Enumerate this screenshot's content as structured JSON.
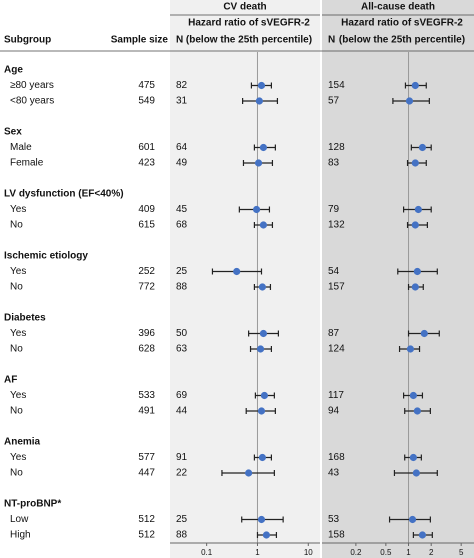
{
  "chart_data": {
    "type": "forest",
    "columns": {
      "subgroup": "Subgroup",
      "sample_size": "Sample size"
    },
    "point_color": "#4472c4",
    "panels": [
      {
        "title": "CV death",
        "label_line1": "Hazard ratio of  sVEGFR-2",
        "label_line2": "(below the 25th percentile)",
        "n_label": "N",
        "xlim": [
          0.019,
          17
        ],
        "xticks": [
          0.1,
          1,
          10
        ],
        "log": true,
        "reference": 1,
        "background": "#f0f0f0"
      },
      {
        "title": "All-cause death",
        "label_line1": "Hazard ratio of  sVEGFR-2",
        "label_line2": "(below the 25th percentile)",
        "n_label": "N",
        "xlim": [
          0.071,
          7.4
        ],
        "xticks": [
          0.2,
          0.5,
          1,
          2,
          5
        ],
        "log": true,
        "reference": 1,
        "background": "#d9d9d9"
      }
    ],
    "groups": [
      {
        "title": "Age",
        "rows": [
          {
            "label": "≥80 years",
            "sample_size": 475,
            "panels": [
              {
                "n": 82,
                "hr": 1.2,
                "lo": 0.76,
                "hi": 1.88
              },
              {
                "n": 154,
                "hr": 1.23,
                "lo": 0.91,
                "hi": 1.72
              }
            ]
          },
          {
            "label": "<80 years",
            "sample_size": 549,
            "panels": [
              {
                "n": 31,
                "hr": 1.09,
                "lo": 0.51,
                "hi": 2.47
              },
              {
                "n": 57,
                "hr": 1.03,
                "lo": 0.62,
                "hi": 1.89
              }
            ]
          }
        ]
      },
      {
        "title": "Sex",
        "rows": [
          {
            "label": "Male",
            "sample_size": 601,
            "panels": [
              {
                "n": 64,
                "hr": 1.31,
                "lo": 0.87,
                "hi": 2.25
              },
              {
                "n": 128,
                "hr": 1.53,
                "lo": 1.09,
                "hi": 2.0
              }
            ]
          },
          {
            "label": "Female",
            "sample_size": 423,
            "panels": [
              {
                "n": 49,
                "hr": 1.05,
                "lo": 0.53,
                "hi": 1.97
              },
              {
                "n": 83,
                "hr": 1.23,
                "lo": 0.97,
                "hi": 1.72
              }
            ]
          }
        ]
      },
      {
        "title": "LV dysfunction (EF<40%)",
        "rows": [
          {
            "label": "Yes",
            "sample_size": 409,
            "panels": [
              {
                "n": 45,
                "hr": 0.96,
                "lo": 0.44,
                "hi": 1.72
              },
              {
                "n": 79,
                "hr": 1.35,
                "lo": 0.86,
                "hi": 2.0
              }
            ]
          },
          {
            "label": "No",
            "sample_size": 615,
            "panels": [
              {
                "n": 68,
                "hr": 1.31,
                "lo": 0.87,
                "hi": 1.97
              },
              {
                "n": 132,
                "hr": 1.23,
                "lo": 0.97,
                "hi": 1.78
              }
            ]
          }
        ]
      },
      {
        "title": "Ischemic etiology",
        "rows": [
          {
            "label": "Yes",
            "sample_size": 252,
            "panels": [
              {
                "n": 25,
                "hr": 0.39,
                "lo": 0.13,
                "hi": 1.2
              },
              {
                "n": 54,
                "hr": 1.31,
                "lo": 0.72,
                "hi": 2.41
              }
            ]
          },
          {
            "label": "No",
            "sample_size": 772,
            "panels": [
              {
                "n": 88,
                "hr": 1.25,
                "lo": 0.87,
                "hi": 1.8
              },
              {
                "n": 157,
                "hr": 1.23,
                "lo": 1.0,
                "hi": 1.57
              }
            ]
          }
        ]
      },
      {
        "title": "Diabetes",
        "rows": [
          {
            "label": "Yes",
            "sample_size": 396,
            "panels": [
              {
                "n": 50,
                "hr": 1.31,
                "lo": 0.67,
                "hi": 2.58
              },
              {
                "n": 87,
                "hr": 1.62,
                "lo": 1.0,
                "hi": 2.56
              }
            ]
          },
          {
            "label": "No",
            "sample_size": 628,
            "panels": [
              {
                "n": 63,
                "hr": 1.15,
                "lo": 0.73,
                "hi": 1.88
              },
              {
                "n": 124,
                "hr": 1.06,
                "lo": 0.76,
                "hi": 1.4
              }
            ]
          }
        ]
      },
      {
        "title": "AF",
        "rows": [
          {
            "label": "Yes",
            "sample_size": 533,
            "panels": [
              {
                "n": 69,
                "hr": 1.37,
                "lo": 0.91,
                "hi": 2.15
              },
              {
                "n": 117,
                "hr": 1.16,
                "lo": 0.86,
                "hi": 1.53
              }
            ]
          },
          {
            "label": "No",
            "sample_size": 491,
            "panels": [
              {
                "n": 44,
                "hr": 1.2,
                "lo": 0.6,
                "hi": 2.25
              },
              {
                "n": 94,
                "hr": 1.31,
                "lo": 0.89,
                "hi": 1.95
              }
            ]
          }
        ]
      },
      {
        "title": "Anemia",
        "rows": [
          {
            "label": "Yes",
            "sample_size": 577,
            "panels": [
              {
                "n": 91,
                "hr": 1.25,
                "lo": 0.87,
                "hi": 1.88
              },
              {
                "n": 168,
                "hr": 1.16,
                "lo": 0.89,
                "hi": 1.48
              }
            ]
          },
          {
            "label": "No",
            "sample_size": 447,
            "panels": [
              {
                "n": 22,
                "hr": 0.67,
                "lo": 0.2,
                "hi": 2.15
              },
              {
                "n": 43,
                "hr": 1.27,
                "lo": 0.65,
                "hi": 2.41
              }
            ]
          }
        ]
      },
      {
        "title": "NT-proBNP*",
        "rows": [
          {
            "label": "Low",
            "sample_size": 512,
            "panels": [
              {
                "n": 25,
                "hr": 1.2,
                "lo": 0.49,
                "hi": 3.2
              },
              {
                "n": 53,
                "hr": 1.13,
                "lo": 0.56,
                "hi": 1.95
              }
            ]
          },
          {
            "label": "High",
            "sample_size": 512,
            "panels": [
              {
                "n": 88,
                "hr": 1.5,
                "lo": 1.0,
                "hi": 2.36
              },
              {
                "n": 158,
                "hr": 1.53,
                "lo": 1.16,
                "hi": 2.07
              }
            ]
          }
        ]
      }
    ]
  }
}
